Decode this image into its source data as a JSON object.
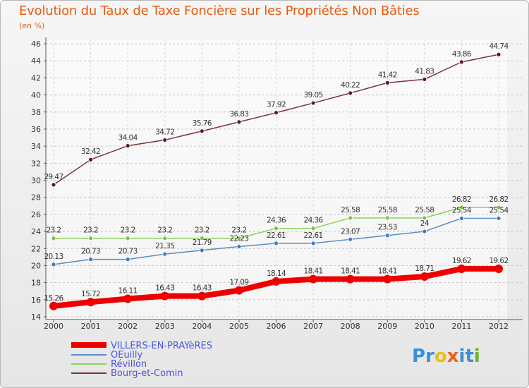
{
  "title": "Evolution du Taux de Taxe Foncière sur les Propriétés Non Bâties",
  "unit_label": "(en %)",
  "logo": {
    "letters": [
      "P",
      "r",
      "o",
      "x",
      "i",
      "t",
      "i"
    ],
    "colors": [
      "#3a8fd6",
      "#3a8fd6",
      "#e8c21a",
      "#e8651a",
      "#3a8fd6",
      "#3a8fd6",
      "#6ab42a"
    ]
  },
  "chart_data": {
    "type": "line",
    "title": "Evolution du Taux de Taxe Foncière sur les Propriétés Non Bâties",
    "ylabel": "(en %)",
    "xlabel": "",
    "categories": [
      "2000",
      "2001",
      "2002",
      "2003",
      "2004",
      "2005",
      "2006",
      "2007",
      "2008",
      "2009",
      "2010",
      "2011",
      "2012"
    ],
    "ylim": [
      14,
      46
    ],
    "yticks": [
      14,
      16,
      18,
      20,
      22,
      24,
      26,
      28,
      30,
      32,
      34,
      36,
      38,
      40,
      42,
      44,
      46
    ],
    "grid": "horizontal dashed",
    "legend_position": "bottom-left",
    "series": [
      {
        "name": "VILLERS-EN-PRAYèRES",
        "color": "#ee0000",
        "marker": "#ee0000",
        "values": [
          15.26,
          15.72,
          16.11,
          16.43,
          16.43,
          17.09,
          18.14,
          18.41,
          18.41,
          18.41,
          18.71,
          19.62,
          19.62
        ],
        "labels": [
          "15.26",
          "15.72",
          "16.11",
          "16.43",
          "16.43",
          "17.09",
          "18.14",
          "18.41",
          "18.41",
          "18.41",
          "18.71",
          "19.62",
          "19.62"
        ]
      },
      {
        "name": "OEuilly",
        "color": "#5b8cc0",
        "marker": "#3a7bc8",
        "values": [
          20.13,
          20.73,
          20.73,
          21.35,
          21.79,
          22.23,
          22.61,
          22.61,
          23.07,
          23.53,
          24,
          25.54,
          25.54
        ],
        "labels": [
          "20.13",
          "20.73",
          "20.73",
          "21.35",
          "21.79",
          "22.23",
          "22.61",
          "22.61",
          "23.07",
          "23.53",
          "24",
          "25.54",
          "25.54"
        ]
      },
      {
        "name": "Révillon",
        "color": "#8ed25a",
        "marker": "#7cc243",
        "values": [
          23.2,
          23.2,
          23.2,
          23.2,
          23.2,
          23.2,
          24.36,
          24.36,
          25.58,
          25.58,
          25.58,
          26.82,
          26.82
        ],
        "labels": [
          "23.2",
          "23.2",
          "23.2",
          "23.2",
          "23.2",
          "23.2",
          "24.36",
          "24.36",
          "25.58",
          "25.58",
          "25.58",
          "26.82",
          "26.82"
        ]
      },
      {
        "name": "Bourg-et-Comin",
        "color": "#7a3438",
        "marker": "#5a1a1e",
        "values": [
          29.47,
          32.42,
          34.04,
          34.72,
          35.76,
          36.83,
          37.92,
          39.05,
          40.22,
          41.42,
          41.83,
          43.86,
          44.74
        ],
        "labels": [
          "29.47",
          "32.42",
          "34.04",
          "34.72",
          "35.76",
          "36.83",
          "37.92",
          "39.05",
          "40.22",
          "41.42",
          "41.83",
          "43.86",
          "44.74"
        ]
      }
    ]
  }
}
